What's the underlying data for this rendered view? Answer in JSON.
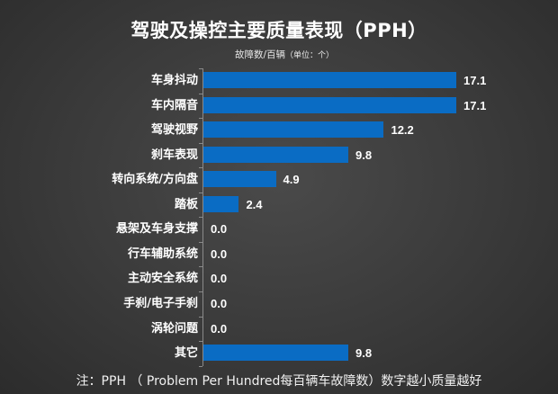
{
  "header": {
    "title": "驾驶及操控主要质量表现（PPH）",
    "subtitle_main": "故障数/百辆",
    "subtitle_unit": "（单位：个）"
  },
  "footer": {
    "note": "注：PPH （ Problem Per Hundred每百辆车故障数）数字越小质量越好"
  },
  "colors": {
    "bar": "#0a6cc4",
    "background": "#3a3a3a",
    "text": "#ffffff"
  },
  "chart_data": {
    "type": "bar",
    "orientation": "horizontal",
    "title": "驾驶及操控主要质量表现（PPH）",
    "subtitle": "故障数/百辆（单位：个）",
    "xlabel": "",
    "ylabel": "",
    "categories": [
      "车身抖动",
      "车内隔音",
      "驾驶视野",
      "刹车表现",
      "转向系统/方向盘",
      "踏板",
      "悬架及车身支撑",
      "行车辅助系统",
      "主动安全系统",
      "手刹/电子手刹",
      "涡轮问题",
      "其它"
    ],
    "values": [
      17.1,
      17.1,
      12.2,
      9.8,
      4.9,
      2.4,
      0.0,
      0.0,
      0.0,
      0.0,
      0.0,
      9.8
    ],
    "value_labels": [
      "17.1",
      "17.1",
      "12.2",
      "9.8",
      "4.9",
      "2.4",
      "0.0",
      "0.0",
      "0.0",
      "0.0",
      "0.0",
      "9.8"
    ],
    "xlim": [
      0,
      17.1
    ],
    "grid": false,
    "legend": null,
    "data_labels": true,
    "annotation": "注：PPH （ Problem Per Hundred每百辆车故障数）数字越小质量越好"
  }
}
